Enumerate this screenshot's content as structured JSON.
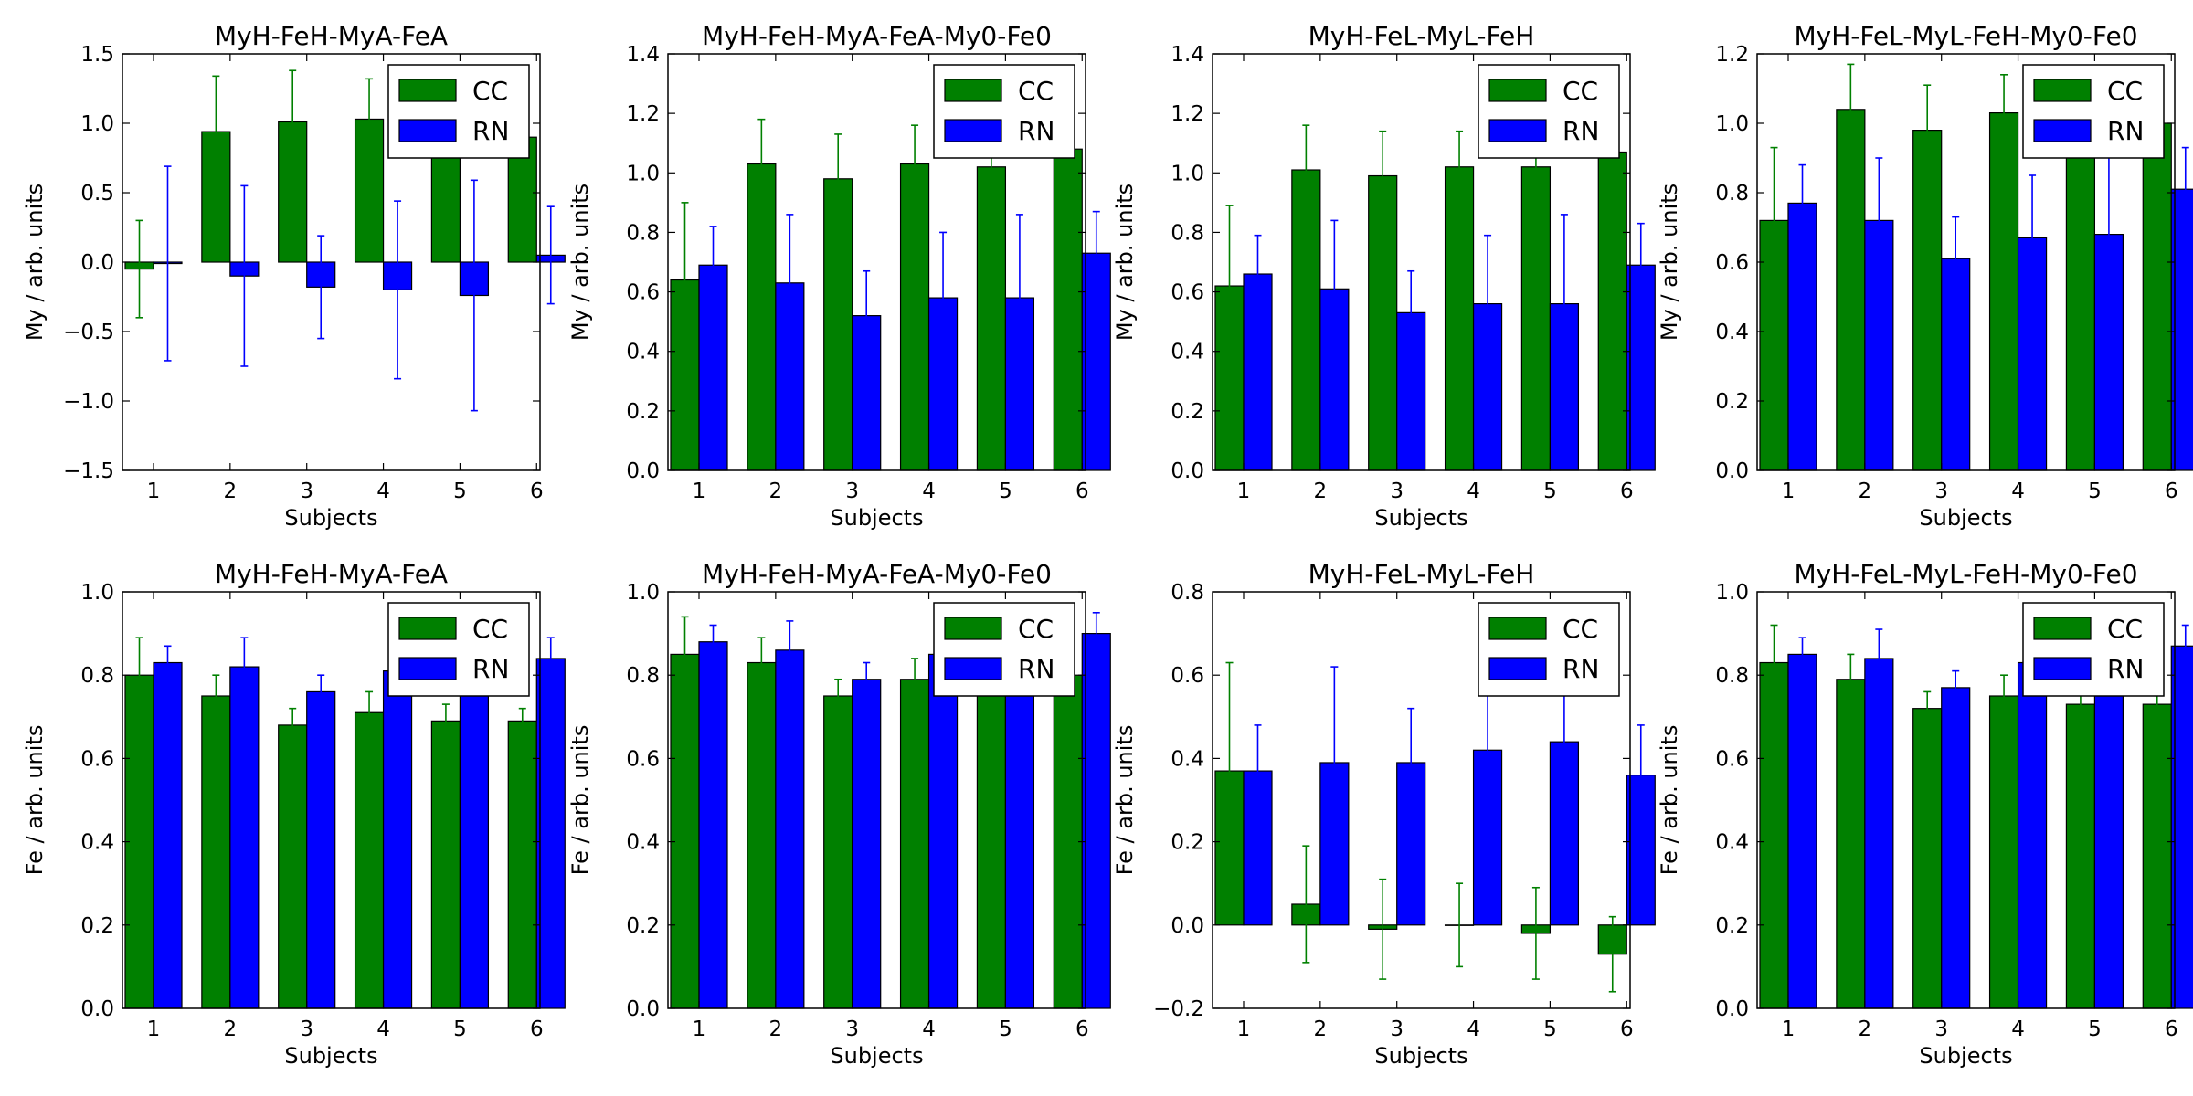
{
  "colors": {
    "cc": "#008000",
    "rn": "#0000ff"
  },
  "chart_data": [
    {
      "type": "bar",
      "title": "MyH-FeH-MyA-FeA",
      "xlabel": "Subjects",
      "ylabel": "My / arb. units",
      "categories": [
        "1",
        "2",
        "3",
        "4",
        "5",
        "6"
      ],
      "ylim": [
        -1.5,
        1.5
      ],
      "yticks": [
        "−1.5",
        "−1.0",
        "−0.5",
        "0.0",
        "0.5",
        "1.0",
        "1.5"
      ],
      "legend": {
        "position": "top-right",
        "entries": [
          "CC",
          "RN"
        ]
      },
      "series": [
        {
          "name": "CC",
          "values": [
            -0.05,
            0.94,
            1.01,
            1.03,
            0.91,
            0.9
          ],
          "errors": [
            0.35,
            0.4,
            0.37,
            0.29,
            0.34,
            0.36
          ]
        },
        {
          "name": "RN",
          "values": [
            -0.01,
            -0.1,
            -0.18,
            -0.2,
            -0.24,
            0.05
          ],
          "errors": [
            0.7,
            0.65,
            0.37,
            0.64,
            0.83,
            0.35
          ]
        }
      ]
    },
    {
      "type": "bar",
      "title": "MyH-FeH-MyA-FeA-My0-Fe0",
      "xlabel": "Subjects",
      "ylabel": "My / arb. units",
      "categories": [
        "1",
        "2",
        "3",
        "4",
        "5",
        "6"
      ],
      "ylim": [
        0.0,
        1.4
      ],
      "yticks": [
        "0.0",
        "0.2",
        "0.4",
        "0.6",
        "0.8",
        "1.0",
        "1.2",
        "1.4"
      ],
      "legend": {
        "position": "top-right",
        "entries": [
          "CC",
          "RN"
        ]
      },
      "series": [
        {
          "name": "CC",
          "values": [
            0.64,
            1.03,
            0.98,
            1.03,
            1.02,
            1.08
          ],
          "errors": [
            0.26,
            0.15,
            0.15,
            0.13,
            0.13,
            0.12
          ]
        },
        {
          "name": "RN",
          "values": [
            0.69,
            0.63,
            0.52,
            0.58,
            0.58,
            0.73
          ],
          "errors": [
            0.13,
            0.23,
            0.15,
            0.22,
            0.28,
            0.14
          ]
        }
      ]
    },
    {
      "type": "bar",
      "title": "MyH-FeL-MyL-FeH",
      "xlabel": "Subjects",
      "ylabel": "My / arb. units",
      "categories": [
        "1",
        "2",
        "3",
        "4",
        "5",
        "6"
      ],
      "ylim": [
        0.0,
        1.4
      ],
      "yticks": [
        "0.0",
        "0.2",
        "0.4",
        "0.6",
        "0.8",
        "1.0",
        "1.2",
        "1.4"
      ],
      "legend": {
        "position": "top-right",
        "entries": [
          "CC",
          "RN"
        ]
      },
      "series": [
        {
          "name": "CC",
          "values": [
            0.62,
            1.01,
            0.99,
            1.02,
            1.02,
            1.07
          ],
          "errors": [
            0.27,
            0.15,
            0.15,
            0.12,
            0.12,
            0.13
          ]
        },
        {
          "name": "RN",
          "values": [
            0.66,
            0.61,
            0.53,
            0.56,
            0.56,
            0.69
          ],
          "errors": [
            0.13,
            0.23,
            0.14,
            0.23,
            0.3,
            0.14
          ]
        }
      ]
    },
    {
      "type": "bar",
      "title": "MyH-FeL-MyL-FeH-My0-Fe0",
      "xlabel": "Subjects",
      "ylabel": "My / arb. units",
      "categories": [
        "1",
        "2",
        "3",
        "4",
        "5",
        "6"
      ],
      "ylim": [
        0.0,
        1.2
      ],
      "yticks": [
        "0.0",
        "0.2",
        "0.4",
        "0.6",
        "0.8",
        "1.0",
        "1.2"
      ],
      "legend": {
        "position": "top-right",
        "entries": [
          "CC",
          "RN"
        ]
      },
      "series": [
        {
          "name": "CC",
          "values": [
            0.72,
            1.04,
            0.98,
            1.03,
            0.97,
            1.0
          ],
          "errors": [
            0.21,
            0.13,
            0.13,
            0.11,
            0.12,
            0.15
          ]
        },
        {
          "name": "RN",
          "values": [
            0.77,
            0.72,
            0.61,
            0.67,
            0.68,
            0.81
          ],
          "errors": [
            0.11,
            0.18,
            0.12,
            0.18,
            0.23,
            0.12
          ]
        }
      ]
    },
    {
      "type": "bar",
      "title": "MyH-FeH-MyA-FeA",
      "xlabel": "Subjects",
      "ylabel": "Fe / arb. units",
      "categories": [
        "1",
        "2",
        "3",
        "4",
        "5",
        "6"
      ],
      "ylim": [
        0.0,
        1.0
      ],
      "yticks": [
        "0.0",
        "0.2",
        "0.4",
        "0.6",
        "0.8",
        "1.0"
      ],
      "legend": {
        "position": "top-right",
        "entries": [
          "CC",
          "RN"
        ]
      },
      "series": [
        {
          "name": "CC",
          "values": [
            0.8,
            0.75,
            0.68,
            0.71,
            0.69,
            0.69
          ],
          "errors": [
            0.09,
            0.05,
            0.04,
            0.05,
            0.04,
            0.03
          ]
        },
        {
          "name": "RN",
          "values": [
            0.83,
            0.82,
            0.76,
            0.81,
            0.81,
            0.84
          ],
          "errors": [
            0.04,
            0.07,
            0.04,
            0.07,
            0.09,
            0.05
          ]
        }
      ]
    },
    {
      "type": "bar",
      "title": "MyH-FeH-MyA-FeA-My0-Fe0",
      "xlabel": "Subjects",
      "ylabel": "Fe / arb. units",
      "categories": [
        "1",
        "2",
        "3",
        "4",
        "5",
        "6"
      ],
      "ylim": [
        0.0,
        1.0
      ],
      "yticks": [
        "0.0",
        "0.2",
        "0.4",
        "0.6",
        "0.8",
        "1.0"
      ],
      "legend": {
        "position": "top-right",
        "entries": [
          "CC",
          "RN"
        ]
      },
      "series": [
        {
          "name": "CC",
          "values": [
            0.85,
            0.83,
            0.75,
            0.79,
            0.8,
            0.8
          ],
          "errors": [
            0.09,
            0.06,
            0.04,
            0.05,
            0.07,
            0.06
          ]
        },
        {
          "name": "RN",
          "values": [
            0.88,
            0.86,
            0.79,
            0.85,
            0.86,
            0.9
          ],
          "errors": [
            0.04,
            0.07,
            0.04,
            0.07,
            0.09,
            0.05
          ]
        }
      ]
    },
    {
      "type": "bar",
      "title": "MyH-FeL-MyL-FeH",
      "xlabel": "Subjects",
      "ylabel": "Fe / arb. units",
      "categories": [
        "1",
        "2",
        "3",
        "4",
        "5",
        "6"
      ],
      "ylim": [
        -0.2,
        0.8
      ],
      "yticks": [
        "−0.2",
        "0.0",
        "0.2",
        "0.4",
        "0.6",
        "0.8"
      ],
      "legend": {
        "position": "top-right",
        "entries": [
          "CC",
          "RN"
        ]
      },
      "series": [
        {
          "name": "CC",
          "values": [
            0.37,
            0.05,
            -0.01,
            0.0,
            -0.02,
            -0.07
          ],
          "errors": [
            0.26,
            0.14,
            0.12,
            0.1,
            0.11,
            0.09
          ]
        },
        {
          "name": "RN",
          "values": [
            0.37,
            0.39,
            0.39,
            0.42,
            0.44,
            0.36
          ],
          "errors": [
            0.11,
            0.23,
            0.13,
            0.23,
            0.29,
            0.12
          ]
        }
      ]
    },
    {
      "type": "bar",
      "title": "MyH-FeL-MyL-FeH-My0-Fe0",
      "xlabel": "Subjects",
      "ylabel": "Fe / arb. units",
      "categories": [
        "1",
        "2",
        "3",
        "4",
        "5",
        "6"
      ],
      "ylim": [
        0.0,
        1.0
      ],
      "yticks": [
        "0.0",
        "0.2",
        "0.4",
        "0.6",
        "0.8",
        "1.0"
      ],
      "legend": {
        "position": "top-right",
        "entries": [
          "CC",
          "RN"
        ]
      },
      "series": [
        {
          "name": "CC",
          "values": [
            0.83,
            0.79,
            0.72,
            0.75,
            0.73,
            0.73
          ],
          "errors": [
            0.09,
            0.06,
            0.04,
            0.05,
            0.05,
            0.04
          ]
        },
        {
          "name": "RN",
          "values": [
            0.85,
            0.84,
            0.77,
            0.83,
            0.83,
            0.87
          ],
          "errors": [
            0.04,
            0.07,
            0.04,
            0.07,
            0.09,
            0.05
          ]
        }
      ]
    }
  ]
}
